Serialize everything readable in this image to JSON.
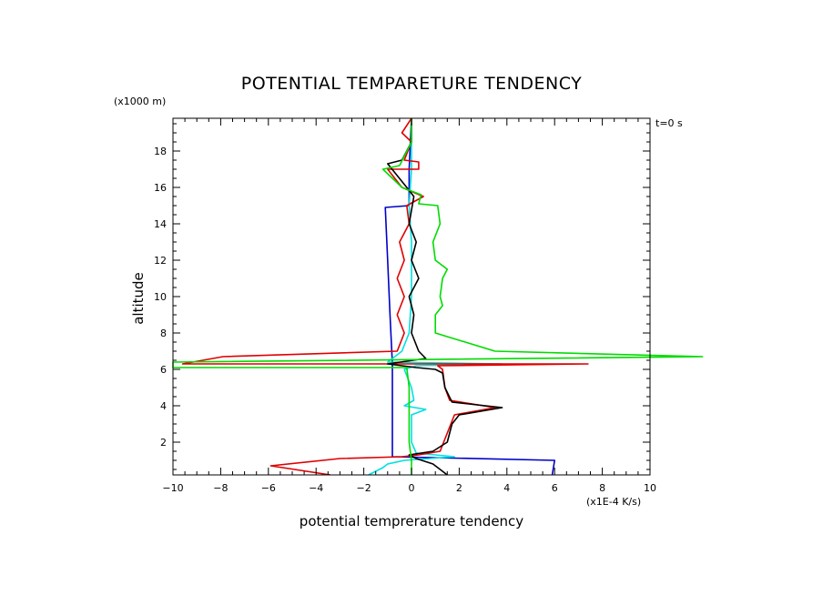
{
  "chart_data": {
    "type": "line",
    "title": "POTENTIAL TEMPARETURE TENDENCY",
    "xlabel": "potential temprerature tendency",
    "ylabel": "altitude",
    "x_unit_label": "(x1E-4 K/s)",
    "y_unit_label": "(x1000 m)",
    "time_label": "t=0 s",
    "xlim": [
      -10,
      10
    ],
    "ylim": [
      0.2,
      19.8
    ],
    "x_ticks": [
      -10,
      -8,
      -6,
      -4,
      -2,
      0,
      2,
      4,
      6,
      8,
      10
    ],
    "x_tick_labels": [
      "−10",
      "−8",
      "−6",
      "−4",
      "−2",
      "0",
      "2",
      "4",
      "6",
      "8",
      "10"
    ],
    "y_ticks": [
      2,
      4,
      6,
      8,
      10,
      12,
      14,
      16,
      18
    ],
    "y_tick_labels": [
      "2",
      "4",
      "6",
      "8",
      "10",
      "12",
      "14",
      "16",
      "18"
    ],
    "series": [
      {
        "name": "blue",
        "color": "#0000c8",
        "points": [
          [
            5.9,
            0.2
          ],
          [
            6.0,
            1.0
          ],
          [
            -0.8,
            1.2
          ],
          [
            -0.8,
            6.3
          ],
          [
            -0.9,
            9.0
          ],
          [
            -1.0,
            12.0
          ],
          [
            -1.1,
            14.9
          ],
          [
            -0.1,
            15.0
          ],
          [
            -0.1,
            17.0
          ],
          [
            0.0,
            19.8
          ]
        ]
      },
      {
        "name": "cyan",
        "color": "#00e0e0",
        "points": [
          [
            -1.8,
            0.2
          ],
          [
            -1.2,
            0.6
          ],
          [
            -1.0,
            0.8
          ],
          [
            -0.3,
            1.0
          ],
          [
            1.8,
            1.2
          ],
          [
            0.2,
            1.4
          ],
          [
            0.0,
            2.0
          ],
          [
            0.0,
            3.5
          ],
          [
            0.6,
            3.8
          ],
          [
            -0.3,
            4.0
          ],
          [
            0.1,
            4.3
          ],
          [
            0.0,
            5.0
          ],
          [
            -0.3,
            6.0
          ],
          [
            0.2,
            6.2
          ],
          [
            3.8,
            6.3
          ],
          [
            -1.0,
            6.4
          ],
          [
            -0.4,
            7.0
          ],
          [
            -0.1,
            8.0
          ],
          [
            0.0,
            10.0
          ],
          [
            0.0,
            13.0
          ],
          [
            -0.1,
            15.0
          ],
          [
            0.0,
            17.0
          ],
          [
            0.0,
            19.8
          ]
        ]
      },
      {
        "name": "red",
        "color": "#e00000",
        "points": [
          [
            -3.4,
            0.2
          ],
          [
            -5.9,
            0.7
          ],
          [
            -3.0,
            1.1
          ],
          [
            -0.4,
            1.2
          ],
          [
            0.3,
            1.3
          ],
          [
            1.2,
            1.5
          ],
          [
            1.5,
            2.5
          ],
          [
            1.8,
            3.5
          ],
          [
            3.5,
            3.9
          ],
          [
            1.6,
            4.3
          ],
          [
            1.4,
            5.0
          ],
          [
            1.3,
            6.0
          ],
          [
            1.1,
            6.2
          ],
          [
            7.4,
            6.3
          ],
          [
            -9.6,
            6.3
          ],
          [
            -7.9,
            6.7
          ],
          [
            -0.6,
            7.0
          ],
          [
            -0.3,
            8.0
          ],
          [
            -0.6,
            9.0
          ],
          [
            -0.3,
            10.0
          ],
          [
            -0.6,
            11.0
          ],
          [
            -0.3,
            12.0
          ],
          [
            -0.5,
            13.0
          ],
          [
            -0.1,
            14.0
          ],
          [
            -0.2,
            15.0
          ],
          [
            0.5,
            15.5
          ],
          [
            -0.4,
            16.0
          ],
          [
            -1.0,
            17.0
          ],
          [
            0.3,
            17.0
          ],
          [
            0.3,
            17.4
          ],
          [
            -0.3,
            17.5
          ],
          [
            0.0,
            18.5
          ],
          [
            -0.4,
            19.0
          ],
          [
            0.0,
            19.8
          ]
        ]
      },
      {
        "name": "black",
        "color": "#000000",
        "points": [
          [
            1.5,
            0.2
          ],
          [
            0.9,
            0.8
          ],
          [
            0.2,
            1.1
          ],
          [
            -0.1,
            1.3
          ],
          [
            0.9,
            1.5
          ],
          [
            1.5,
            2.0
          ],
          [
            1.7,
            3.0
          ],
          [
            2.0,
            3.5
          ],
          [
            3.8,
            3.9
          ],
          [
            1.7,
            4.2
          ],
          [
            1.4,
            5.0
          ],
          [
            1.3,
            5.8
          ],
          [
            1.0,
            6.0
          ],
          [
            0.2,
            6.1
          ],
          [
            -1.0,
            6.3
          ],
          [
            0.6,
            6.6
          ],
          [
            0.3,
            7.0
          ],
          [
            0.0,
            8.0
          ],
          [
            0.1,
            9.0
          ],
          [
            -0.1,
            10.0
          ],
          [
            0.3,
            11.0
          ],
          [
            0.0,
            12.0
          ],
          [
            0.2,
            13.0
          ],
          [
            -0.1,
            14.0
          ],
          [
            0.1,
            15.5
          ],
          [
            -0.2,
            16.0
          ],
          [
            -1.0,
            17.3
          ],
          [
            -0.4,
            17.5
          ],
          [
            0.0,
            18.5
          ],
          [
            0.0,
            19.8
          ]
        ]
      },
      {
        "name": "green",
        "color": "#00dc00",
        "points": [
          [
            0.0,
            0.2
          ],
          [
            0.0,
            1.0
          ],
          [
            -0.1,
            2.0
          ],
          [
            -0.1,
            5.0
          ],
          [
            -0.2,
            6.1
          ],
          [
            -10,
            6.1
          ],
          [
            -10,
            6.4
          ],
          [
            12.2,
            6.7
          ],
          [
            3.5,
            7.0
          ],
          [
            1.0,
            8.0
          ],
          [
            1.0,
            9.0
          ],
          [
            1.3,
            9.5
          ],
          [
            1.2,
            10.0
          ],
          [
            1.3,
            11.0
          ],
          [
            1.5,
            11.5
          ],
          [
            1.0,
            12.0
          ],
          [
            0.9,
            13.0
          ],
          [
            1.2,
            14.0
          ],
          [
            1.1,
            15.0
          ],
          [
            0.3,
            15.1
          ],
          [
            0.4,
            15.6
          ],
          [
            -0.4,
            16.0
          ],
          [
            -1.2,
            17.0
          ],
          [
            -0.5,
            17.2
          ],
          [
            0.0,
            18.5
          ],
          [
            0.0,
            19.8
          ]
        ]
      }
    ]
  }
}
